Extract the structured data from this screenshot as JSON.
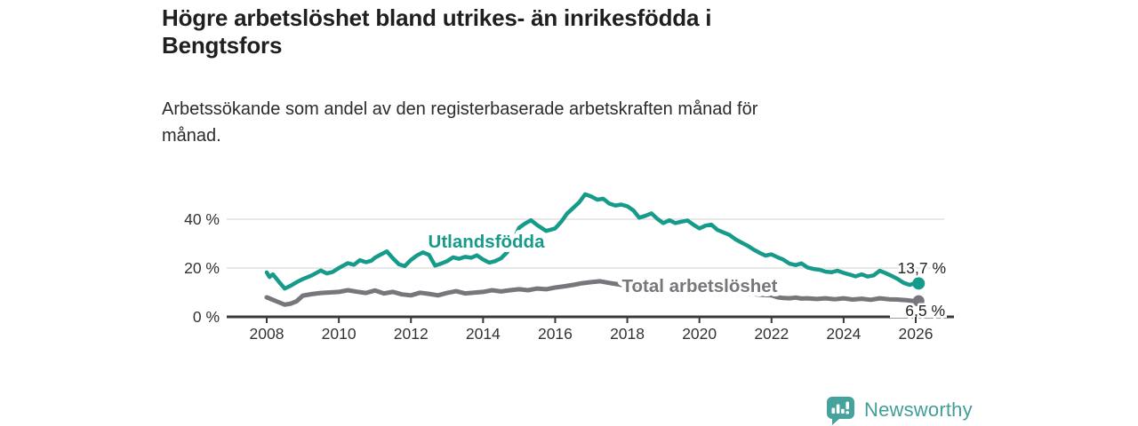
{
  "header": {
    "title_lines": [
      "Högre arbetslöshet bland utrikes- än inrikesfödda i",
      "Bengtsfors"
    ],
    "subtitle_lines": [
      "Arbetssökande som andel av den registerbaserade arbetskraften månad för",
      "månad."
    ]
  },
  "footer": {
    "brand": "Newsworthy",
    "logo_icon": "bar-chart-speech-bubble-icon"
  },
  "colors": {
    "teal_series": "#169b8b",
    "gray_series": "#76767b",
    "axis": "#3a3a3a",
    "grid": "#d9d9d9",
    "title_text": "#1f1f1f",
    "value_text": "#222222",
    "brand_teal": "#419e98"
  },
  "chart_data": {
    "type": "line",
    "title": "Högre arbetslöshet bland utrikes- än inrikesfödda i Bengtsfors",
    "subtitle": "Arbetssökande som andel av den registerbaserade arbetskraften månad för månad.",
    "grid": "horizontal-only",
    "legend_position": "inline-labels",
    "x_axis": {
      "tick_values": [
        2008,
        2010,
        2012,
        2014,
        2016,
        2018,
        2020,
        2022,
        2024,
        2026
      ],
      "tick_labels": [
        "2008",
        "2010",
        "2012",
        "2014",
        "2016",
        "2018",
        "2020",
        "2022",
        "2024",
        "2026"
      ],
      "range": [
        2006.9,
        2027.05
      ]
    },
    "y_axis": {
      "unit": "%",
      "range": [
        0,
        53
      ],
      "ticks": [
        {
          "value": 0,
          "label": "0 %"
        },
        {
          "value": 20,
          "label": "20 %"
        },
        {
          "value": 40,
          "label": "40 %"
        }
      ]
    },
    "series": [
      {
        "name": "Utlandsfödda",
        "color": "#169b8b",
        "end_label": "13,7 %",
        "end_value": 13.7,
        "points": [
          [
            2008.0,
            18.2
          ],
          [
            2008.08,
            16.3
          ],
          [
            2008.17,
            17.4
          ],
          [
            2008.33,
            14.5
          ],
          [
            2008.5,
            11.6
          ],
          [
            2008.67,
            12.8
          ],
          [
            2008.83,
            14.2
          ],
          [
            2009.0,
            15.5
          ],
          [
            2009.25,
            17.0
          ],
          [
            2009.5,
            19.0
          ],
          [
            2009.67,
            17.8
          ],
          [
            2009.83,
            18.4
          ],
          [
            2010.0,
            20.0
          ],
          [
            2010.25,
            22.0
          ],
          [
            2010.42,
            21.3
          ],
          [
            2010.58,
            23.2
          ],
          [
            2010.75,
            22.4
          ],
          [
            2010.9,
            23.0
          ],
          [
            2011.0,
            24.2
          ],
          [
            2011.17,
            25.6
          ],
          [
            2011.33,
            26.8
          ],
          [
            2011.5,
            24.0
          ],
          [
            2011.67,
            21.5
          ],
          [
            2011.83,
            20.8
          ],
          [
            2012.0,
            23.3
          ],
          [
            2012.17,
            25.2
          ],
          [
            2012.33,
            26.4
          ],
          [
            2012.5,
            25.4
          ],
          [
            2012.67,
            21.0
          ],
          [
            2012.83,
            21.8
          ],
          [
            2013.0,
            22.8
          ],
          [
            2013.17,
            24.4
          ],
          [
            2013.33,
            23.8
          ],
          [
            2013.5,
            24.6
          ],
          [
            2013.67,
            24.2
          ],
          [
            2013.83,
            25.2
          ],
          [
            2014.0,
            23.5
          ],
          [
            2014.17,
            22.2
          ],
          [
            2014.33,
            22.8
          ],
          [
            2014.5,
            24.0
          ],
          [
            2014.67,
            26.5
          ],
          [
            2014.83,
            31.0
          ],
          [
            2015.0,
            36.5
          ],
          [
            2015.17,
            38.3
          ],
          [
            2015.33,
            39.6
          ],
          [
            2015.5,
            37.6
          ],
          [
            2015.75,
            35.2
          ],
          [
            2016.0,
            36.2
          ],
          [
            2016.17,
            39.0
          ],
          [
            2016.33,
            42.3
          ],
          [
            2016.5,
            44.6
          ],
          [
            2016.67,
            47.0
          ],
          [
            2016.83,
            50.2
          ],
          [
            2017.0,
            49.3
          ],
          [
            2017.17,
            48.0
          ],
          [
            2017.33,
            48.4
          ],
          [
            2017.5,
            46.4
          ],
          [
            2017.67,
            45.6
          ],
          [
            2017.83,
            46.0
          ],
          [
            2018.0,
            45.3
          ],
          [
            2018.17,
            43.6
          ],
          [
            2018.33,
            40.6
          ],
          [
            2018.5,
            41.4
          ],
          [
            2018.67,
            42.4
          ],
          [
            2018.83,
            40.2
          ],
          [
            2019.0,
            38.4
          ],
          [
            2019.17,
            39.6
          ],
          [
            2019.33,
            38.4
          ],
          [
            2019.5,
            39.0
          ],
          [
            2019.67,
            39.5
          ],
          [
            2019.83,
            37.8
          ],
          [
            2020.0,
            36.2
          ],
          [
            2020.17,
            37.4
          ],
          [
            2020.33,
            37.8
          ],
          [
            2020.5,
            35.6
          ],
          [
            2020.67,
            34.6
          ],
          [
            2020.83,
            33.6
          ],
          [
            2021.0,
            31.8
          ],
          [
            2021.17,
            30.4
          ],
          [
            2021.33,
            29.2
          ],
          [
            2021.5,
            27.6
          ],
          [
            2021.67,
            26.2
          ],
          [
            2021.83,
            25.1
          ],
          [
            2022.0,
            25.6
          ],
          [
            2022.17,
            24.4
          ],
          [
            2022.33,
            23.4
          ],
          [
            2022.5,
            21.8
          ],
          [
            2022.67,
            21.2
          ],
          [
            2022.83,
            21.9
          ],
          [
            2023.0,
            20.2
          ],
          [
            2023.17,
            19.6
          ],
          [
            2023.33,
            19.3
          ],
          [
            2023.5,
            18.5
          ],
          [
            2023.67,
            18.3
          ],
          [
            2023.83,
            18.9
          ],
          [
            2024.0,
            18.0
          ],
          [
            2024.17,
            17.3
          ],
          [
            2024.33,
            16.6
          ],
          [
            2024.5,
            17.4
          ],
          [
            2024.67,
            16.5
          ],
          [
            2024.83,
            17.0
          ],
          [
            2025.0,
            18.9
          ],
          [
            2025.17,
            17.9
          ],
          [
            2025.33,
            16.8
          ],
          [
            2025.5,
            15.5
          ],
          [
            2025.67,
            13.9
          ],
          [
            2025.83,
            13.1
          ],
          [
            2026.0,
            13.9
          ],
          [
            2026.08,
            13.7
          ]
        ]
      },
      {
        "name": "Total arbetslöshet",
        "color": "#76767b",
        "end_label": "6,5 %",
        "end_value": 6.5,
        "points": [
          [
            2008.0,
            8.0
          ],
          [
            2008.17,
            7.0
          ],
          [
            2008.33,
            6.0
          ],
          [
            2008.5,
            5.0
          ],
          [
            2008.67,
            5.4
          ],
          [
            2008.83,
            6.4
          ],
          [
            2009.0,
            8.7
          ],
          [
            2009.25,
            9.3
          ],
          [
            2009.5,
            9.8
          ],
          [
            2009.75,
            10.0
          ],
          [
            2010.0,
            10.2
          ],
          [
            2010.25,
            10.9
          ],
          [
            2010.5,
            10.3
          ],
          [
            2010.75,
            9.8
          ],
          [
            2011.0,
            10.8
          ],
          [
            2011.25,
            9.6
          ],
          [
            2011.5,
            10.2
          ],
          [
            2011.75,
            9.2
          ],
          [
            2012.0,
            8.8
          ],
          [
            2012.25,
            9.9
          ],
          [
            2012.5,
            9.4
          ],
          [
            2012.75,
            8.8
          ],
          [
            2013.0,
            9.8
          ],
          [
            2013.25,
            10.5
          ],
          [
            2013.5,
            9.6
          ],
          [
            2013.75,
            9.9
          ],
          [
            2014.0,
            10.2
          ],
          [
            2014.25,
            10.9
          ],
          [
            2014.5,
            10.4
          ],
          [
            2014.75,
            10.9
          ],
          [
            2015.0,
            11.3
          ],
          [
            2015.25,
            10.9
          ],
          [
            2015.5,
            11.6
          ],
          [
            2015.75,
            11.3
          ],
          [
            2016.0,
            12.0
          ],
          [
            2016.25,
            12.5
          ],
          [
            2016.5,
            13.1
          ],
          [
            2016.75,
            13.8
          ],
          [
            2017.0,
            14.2
          ],
          [
            2017.25,
            14.6
          ],
          [
            2017.5,
            13.9
          ],
          [
            2017.75,
            13.3
          ],
          [
            2018.0,
            12.7
          ],
          [
            2018.25,
            12.1
          ],
          [
            2018.5,
            11.6
          ],
          [
            2018.75,
            11.3
          ],
          [
            2019.0,
            11.0
          ],
          [
            2019.25,
            10.6
          ],
          [
            2019.5,
            10.3
          ],
          [
            2019.75,
            10.3
          ],
          [
            2020.0,
            10.6
          ],
          [
            2020.25,
            11.2
          ],
          [
            2020.5,
            11.6
          ],
          [
            2020.75,
            11.0
          ],
          [
            2021.0,
            10.2
          ],
          [
            2021.25,
            9.6
          ],
          [
            2021.5,
            9.3
          ],
          [
            2021.75,
            9.0
          ],
          [
            2022.0,
            8.8
          ],
          [
            2022.17,
            8.0
          ],
          [
            2022.33,
            7.7
          ],
          [
            2022.5,
            7.6
          ],
          [
            2022.67,
            7.9
          ],
          [
            2022.83,
            7.5
          ],
          [
            2023.0,
            7.6
          ],
          [
            2023.25,
            7.3
          ],
          [
            2023.5,
            7.6
          ],
          [
            2023.75,
            7.2
          ],
          [
            2024.0,
            7.6
          ],
          [
            2024.25,
            7.1
          ],
          [
            2024.5,
            7.4
          ],
          [
            2024.75,
            7.0
          ],
          [
            2025.0,
            7.6
          ],
          [
            2025.25,
            7.2
          ],
          [
            2025.5,
            7.1
          ],
          [
            2025.75,
            6.8
          ],
          [
            2026.0,
            6.4
          ],
          [
            2026.08,
            6.5
          ]
        ]
      }
    ]
  }
}
